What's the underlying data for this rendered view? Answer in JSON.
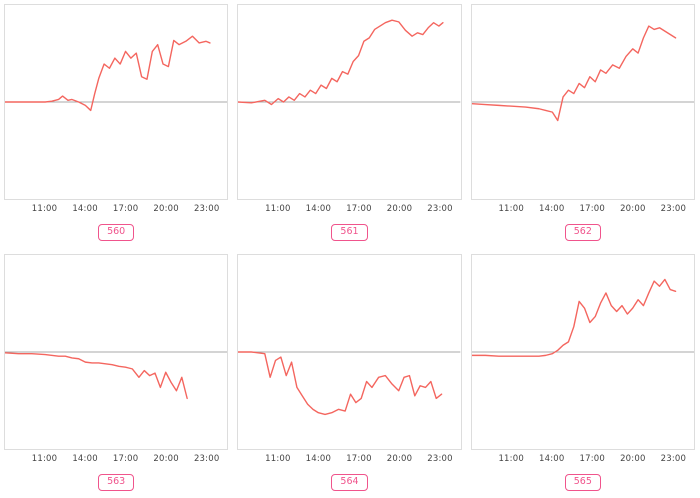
{
  "colors": {
    "line": "#f4665f",
    "zero_line": "#aaaaaa",
    "plot_border": "#dddddd",
    "badge": "#f0548c",
    "tick_text": "#444444"
  },
  "chart_data": [
    {
      "type": "line",
      "label": "560",
      "title": "",
      "xlabel": "",
      "ylabel": "",
      "grid": false,
      "legend_position": "none",
      "zero_line": true,
      "xlim": [
        8,
        24.6
      ],
      "ylim": [
        -1.15,
        1.15
      ],
      "xticks": [
        11,
        14,
        17,
        20,
        23
      ],
      "xtick_labels": [
        "11:00",
        "14:00",
        "17:00",
        "20:00",
        "23:00"
      ],
      "x": [
        8,
        9,
        10,
        11,
        11.5,
        12,
        12.3,
        12.7,
        13,
        13.5,
        14,
        14.4,
        14.7,
        15,
        15.4,
        15.8,
        16.2,
        16.6,
        17,
        17.4,
        17.8,
        18.2,
        18.6,
        19,
        19.4,
        19.8,
        20.2,
        20.6,
        21,
        21.5,
        22,
        22.5,
        23,
        23.3
      ],
      "values": [
        0,
        0,
        0,
        0,
        0.01,
        0.03,
        0.07,
        0.02,
        0.03,
        0,
        -0.04,
        -0.1,
        0.1,
        0.28,
        0.45,
        0.4,
        0.52,
        0.45,
        0.6,
        0.52,
        0.58,
        0.3,
        0.27,
        0.6,
        0.68,
        0.45,
        0.42,
        0.73,
        0.68,
        0.72,
        0.78,
        0.7,
        0.72,
        0.7
      ]
    },
    {
      "type": "line",
      "label": "561",
      "title": "",
      "xlabel": "",
      "ylabel": "",
      "grid": false,
      "legend_position": "none",
      "zero_line": true,
      "xlim": [
        8,
        24.6
      ],
      "ylim": [
        -1.15,
        1.15
      ],
      "xticks": [
        11,
        14,
        17,
        20,
        23
      ],
      "xtick_labels": [
        "11:00",
        "14:00",
        "17:00",
        "20:00",
        "23:00"
      ],
      "x": [
        8,
        9,
        10,
        10.5,
        11,
        11.4,
        11.8,
        12.2,
        12.6,
        13,
        13.4,
        13.8,
        14.2,
        14.6,
        15,
        15.4,
        15.8,
        16.2,
        16.6,
        17,
        17.4,
        17.8,
        18.2,
        18.6,
        19,
        19.5,
        20,
        20.5,
        21,
        21.4,
        21.8,
        22.2,
        22.6,
        23,
        23.3
      ],
      "values": [
        0,
        -0.01,
        0.02,
        -0.03,
        0.04,
        0,
        0.06,
        0.02,
        0.1,
        0.06,
        0.14,
        0.1,
        0.2,
        0.16,
        0.28,
        0.24,
        0.36,
        0.33,
        0.48,
        0.55,
        0.72,
        0.76,
        0.86,
        0.9,
        0.94,
        0.97,
        0.95,
        0.85,
        0.78,
        0.82,
        0.8,
        0.88,
        0.94,
        0.9,
        0.94
      ]
    },
    {
      "type": "line",
      "label": "562",
      "title": "",
      "xlabel": "",
      "ylabel": "",
      "grid": false,
      "legend_position": "none",
      "zero_line": true,
      "xlim": [
        8,
        24.6
      ],
      "ylim": [
        -1.15,
        1.15
      ],
      "xticks": [
        11,
        14,
        17,
        20,
        23
      ],
      "xtick_labels": [
        "11:00",
        "14:00",
        "17:00",
        "20:00",
        "23:00"
      ],
      "x": [
        8,
        9,
        10,
        11,
        12,
        13,
        13.5,
        14,
        14.4,
        14.8,
        15.2,
        15.6,
        16,
        16.4,
        16.8,
        17.2,
        17.6,
        18,
        18.5,
        19,
        19.5,
        20,
        20.4,
        20.8,
        21.2,
        21.6,
        22,
        22.4,
        22.8,
        23.2
      ],
      "values": [
        -0.02,
        -0.03,
        -0.04,
        -0.05,
        -0.06,
        -0.08,
        -0.1,
        -0.12,
        -0.22,
        0.06,
        0.14,
        0.1,
        0.22,
        0.17,
        0.3,
        0.24,
        0.38,
        0.34,
        0.44,
        0.4,
        0.54,
        0.63,
        0.58,
        0.76,
        0.9,
        0.86,
        0.88,
        0.84,
        0.8,
        0.76
      ]
    },
    {
      "type": "line",
      "label": "563",
      "title": "",
      "xlabel": "",
      "ylabel": "",
      "grid": false,
      "legend_position": "none",
      "zero_line": true,
      "xlim": [
        8,
        24.6
      ],
      "ylim": [
        -1.15,
        1.15
      ],
      "xticks": [
        11,
        14,
        17,
        20,
        23
      ],
      "xtick_labels": [
        "11:00",
        "14:00",
        "17:00",
        "20:00",
        "23:00"
      ],
      "x": [
        8,
        9,
        10,
        11,
        12,
        12.5,
        13,
        13.5,
        14,
        14.5,
        15,
        15.5,
        16,
        16.5,
        17,
        17.5,
        18,
        18.4,
        18.8,
        19.2,
        19.6,
        20,
        20.4,
        20.8,
        21.2,
        21.6
      ],
      "values": [
        -0.01,
        -0.02,
        -0.02,
        -0.03,
        -0.05,
        -0.05,
        -0.07,
        -0.08,
        -0.12,
        -0.13,
        -0.13,
        -0.14,
        -0.15,
        -0.17,
        -0.18,
        -0.2,
        -0.3,
        -0.22,
        -0.28,
        -0.25,
        -0.42,
        -0.24,
        -0.36,
        -0.46,
        -0.3,
        -0.55
      ]
    },
    {
      "type": "line",
      "label": "564",
      "title": "",
      "xlabel": "",
      "ylabel": "",
      "grid": false,
      "legend_position": "none",
      "zero_line": true,
      "xlim": [
        8,
        24.6
      ],
      "ylim": [
        -1.15,
        1.15
      ],
      "xticks": [
        11,
        14,
        17,
        20,
        23
      ],
      "xtick_labels": [
        "11:00",
        "14:00",
        "17:00",
        "20:00",
        "23:00"
      ],
      "x": [
        8,
        9,
        10,
        10.4,
        10.8,
        11.2,
        11.6,
        12,
        12.4,
        12.8,
        13.2,
        13.6,
        14,
        14.5,
        15,
        15.5,
        16,
        16.4,
        16.8,
        17.2,
        17.6,
        18,
        18.5,
        19,
        19.5,
        20,
        20.4,
        20.8,
        21.2,
        21.6,
        22,
        22.4,
        22.8,
        23.2
      ],
      "values": [
        0,
        0,
        -0.02,
        -0.3,
        -0.1,
        -0.06,
        -0.28,
        -0.12,
        -0.42,
        -0.52,
        -0.62,
        -0.68,
        -0.72,
        -0.74,
        -0.72,
        -0.68,
        -0.7,
        -0.5,
        -0.6,
        -0.55,
        -0.35,
        -0.42,
        -0.3,
        -0.28,
        -0.38,
        -0.46,
        -0.3,
        -0.28,
        -0.52,
        -0.4,
        -0.42,
        -0.35,
        -0.55,
        -0.5
      ]
    },
    {
      "type": "line",
      "label": "565",
      "title": "",
      "xlabel": "",
      "ylabel": "",
      "grid": false,
      "legend_position": "none",
      "zero_line": true,
      "xlim": [
        8,
        24.6
      ],
      "ylim": [
        -1.15,
        1.15
      ],
      "xticks": [
        11,
        14,
        17,
        20,
        23
      ],
      "xtick_labels": [
        "11:00",
        "14:00",
        "17:00",
        "20:00",
        "23:00"
      ],
      "x": [
        8,
        9,
        10,
        11,
        12,
        13,
        13.5,
        14,
        14.4,
        14.8,
        15.2,
        15.6,
        16,
        16.4,
        16.8,
        17.2,
        17.6,
        18,
        18.4,
        18.8,
        19.2,
        19.6,
        20,
        20.4,
        20.8,
        21.2,
        21.6,
        22,
        22.4,
        22.8,
        23.2
      ],
      "values": [
        -0.04,
        -0.04,
        -0.05,
        -0.05,
        -0.05,
        -0.05,
        -0.04,
        -0.02,
        0.02,
        0.08,
        0.12,
        0.3,
        0.6,
        0.52,
        0.35,
        0.42,
        0.58,
        0.7,
        0.55,
        0.48,
        0.55,
        0.45,
        0.52,
        0.62,
        0.55,
        0.7,
        0.84,
        0.78,
        0.86,
        0.74,
        0.72
      ]
    }
  ]
}
